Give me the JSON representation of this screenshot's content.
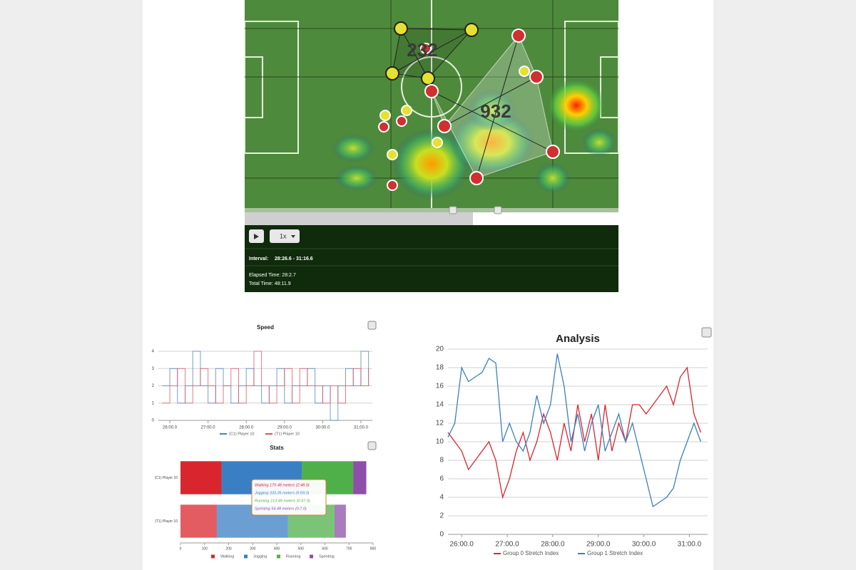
{
  "pitch": {
    "labels": [
      "232",
      "932"
    ]
  },
  "controls": {
    "speed": "1x",
    "interval_label": "Interval:",
    "interval": "28:26.6 - 31:16.6",
    "elapsed": "Elapsed Time: 28:2.7",
    "total": "Total Time: 48:11.9"
  },
  "chart_data": [
    {
      "type": "line",
      "step": true,
      "title": "Speed",
      "x": [
        25.8,
        26.0,
        26.2,
        26.4,
        26.6,
        26.8,
        27.0,
        27.2,
        27.4,
        27.6,
        27.8,
        28.0,
        28.2,
        28.4,
        28.6,
        28.8,
        29.0,
        29.2,
        29.4,
        29.6,
        29.8,
        30.0,
        30.2,
        30.4,
        30.6,
        30.8,
        31.0,
        31.2
      ],
      "series": [
        {
          "name": "(C1) Player 10",
          "color": "#4a7fc0",
          "values": [
            2,
            3,
            1,
            2,
            4,
            2,
            1,
            3,
            2,
            1,
            2,
            3,
            2,
            1,
            2,
            3,
            1,
            2,
            2,
            3,
            1,
            2,
            0,
            2,
            3,
            2,
            4,
            2
          ]
        },
        {
          "name": "(T1) Player 10",
          "color": "#e0505e",
          "values": [
            1,
            2,
            3,
            1,
            2,
            3,
            2,
            1,
            2,
            3,
            1,
            2,
            4,
            2,
            1,
            2,
            3,
            1,
            3,
            2,
            2,
            1,
            2,
            1,
            2,
            3,
            2,
            3
          ]
        }
      ],
      "xlim": [
        25.7,
        31.3
      ],
      "ylim": [
        0,
        4
      ],
      "yticks": [
        0,
        1,
        2,
        3,
        4
      ],
      "xticks": [
        {
          "value": 26,
          "label": "26:00.0"
        },
        {
          "value": 27,
          "label": "27:00.0"
        },
        {
          "value": 28,
          "label": "28:00.0"
        },
        {
          "value": 29,
          "label": "29:00.0"
        },
        {
          "value": 30,
          "label": "30:00.0"
        },
        {
          "value": 31,
          "label": "31:00.0"
        }
      ],
      "grid": true
    },
    {
      "type": "bar",
      "orientation": "horizontal",
      "stacked": true,
      "title": "Stats",
      "categories": [
        "(C1) Player 10",
        "(T1) Player 10"
      ],
      "series": [
        {
          "name": "Walking",
          "color": "#d9262e",
          "values": [
            170.48,
            151
          ]
        },
        {
          "name": "Jogging",
          "color": "#3a7fc4",
          "values": [
            333.35,
            296
          ]
        },
        {
          "name": "Running",
          "color": "#4fb04a",
          "values": [
            213.49,
            193
          ]
        },
        {
          "name": "Sprinting",
          "color": "#8e4fa8",
          "values": [
            54.48,
            47
          ]
        }
      ],
      "xlim": [
        0,
        800
      ],
      "xticks": [
        0,
        100,
        200,
        300,
        400,
        500,
        600,
        700,
        800
      ],
      "tooltip": [
        "Walking 170.48 meters (2:48.0)",
        "Jogging 333.35 meters (5:59.0)",
        "Running 213.49 meters (0:47.0)",
        "Sprinting 54.48 meters (0:7.0)"
      ]
    },
    {
      "type": "line",
      "title": "Analysis",
      "x": [
        25.7,
        25.85,
        26,
        26.15,
        26.3,
        26.45,
        26.6,
        26.75,
        26.9,
        27.05,
        27.2,
        27.35,
        27.5,
        27.65,
        27.8,
        27.95,
        28.1,
        28.25,
        28.4,
        28.55,
        28.7,
        28.85,
        29,
        29.15,
        29.3,
        29.45,
        29.6,
        29.75,
        29.9,
        30.05,
        30.2,
        30.35,
        30.5,
        30.65,
        30.8,
        30.95,
        31.1,
        31.25
      ],
      "series": [
        {
          "name": "Group 0 Stretch Index",
          "color": "#d9262e",
          "values": [
            11,
            10,
            9,
            7,
            8,
            9,
            10,
            8,
            4,
            6,
            9,
            11,
            8,
            10,
            13,
            11,
            8,
            12,
            9,
            14,
            10,
            13,
            8,
            14,
            9,
            12,
            10,
            14,
            14,
            13,
            14,
            15,
            16,
            14,
            17,
            18,
            13,
            11
          ]
        },
        {
          "name": "Group 1 Stretch Index",
          "color": "#3a7fc4",
          "values": [
            10.5,
            12,
            18,
            16.5,
            17,
            17.5,
            19,
            18.5,
            10,
            12,
            10,
            9,
            11,
            15,
            12,
            14,
            19.5,
            16,
            10,
            13,
            9,
            12,
            14,
            9,
            11,
            13,
            10,
            12,
            9,
            6,
            3,
            3.5,
            4,
            5,
            8,
            10,
            12,
            10
          ]
        }
      ],
      "xlim": [
        25.7,
        31.4
      ],
      "ylim": [
        0,
        20
      ],
      "yticks": [
        0,
        2,
        4,
        6,
        8,
        10,
        12,
        14,
        16,
        18,
        20
      ],
      "xticks": [
        {
          "value": 26,
          "label": "26:00.0"
        },
        {
          "value": 27,
          "label": "27:00.0"
        },
        {
          "value": 28,
          "label": "28:00.0"
        },
        {
          "value": 29,
          "label": "29:00.0"
        },
        {
          "value": 30,
          "label": "30:00.0"
        },
        {
          "value": 31,
          "label": "31:00.0"
        }
      ],
      "grid": true
    }
  ]
}
